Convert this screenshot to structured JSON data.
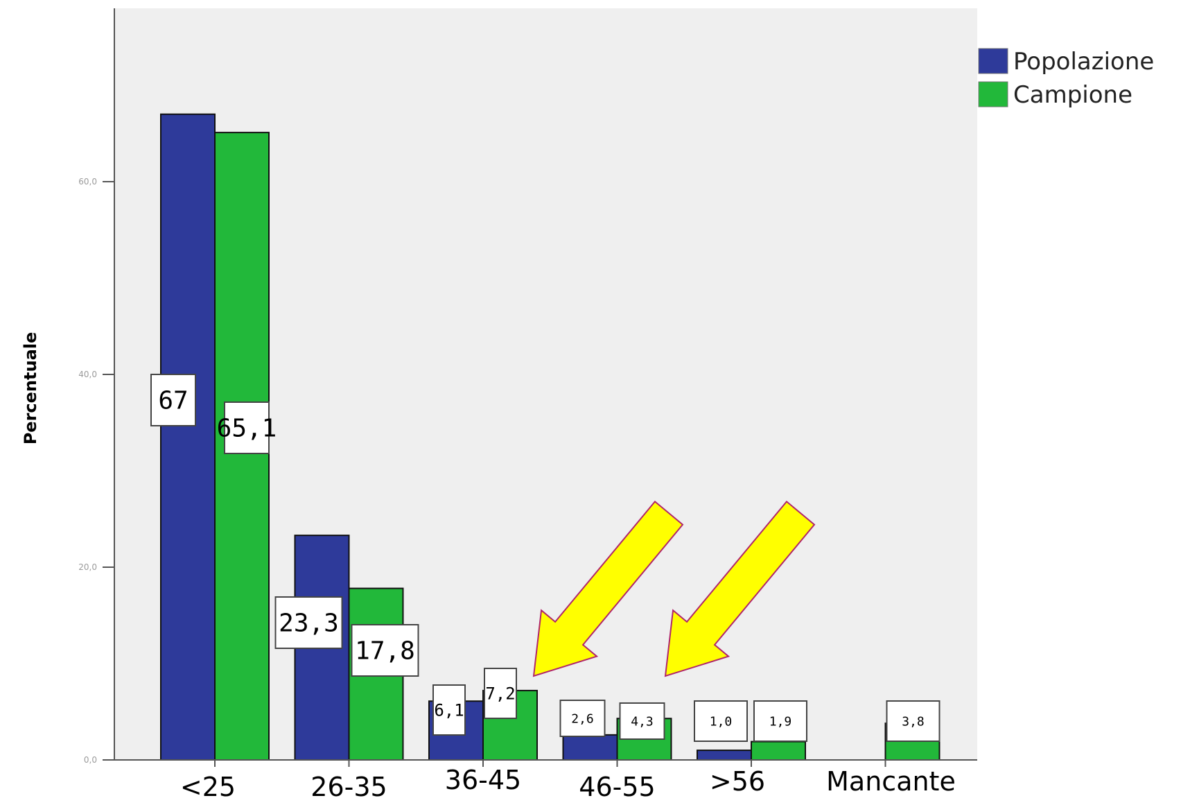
{
  "chart_data": {
    "type": "bar",
    "title": "",
    "xlabel": "",
    "ylabel": "Percentuale",
    "categories": [
      "<25",
      "26-35",
      "36-45",
      "46-55",
      ">56",
      "Mancante"
    ],
    "series": [
      {
        "name": "Popolazione",
        "color": "#2e3a9a",
        "values": [
          67,
          23.3,
          6.1,
          2.6,
          1.0,
          null
        ],
        "labels": [
          "67",
          "23,3",
          "6,1",
          "2,6",
          "1,0",
          ""
        ]
      },
      {
        "name": "Campione",
        "color": "#22b83a",
        "values": [
          65.1,
          17.8,
          7.2,
          4.3,
          1.9,
          3.8
        ],
        "labels": [
          "65,1",
          "17,8",
          "7,2",
          "4,3",
          "1,9",
          "3,8"
        ]
      }
    ],
    "ylim": [
      0,
      75
    ],
    "yticks": [
      "0,0",
      "20,0",
      "40,0",
      "60,0"
    ],
    "ytick_values": [
      0,
      20,
      40,
      60
    ],
    "grid": false,
    "legend": "top-right",
    "plot_background": "#efefef",
    "annotations": [
      {
        "type": "arrow",
        "color": "#ffff00",
        "target_category": "36-45"
      },
      {
        "type": "arrow",
        "color": "#ffff00",
        "target_category": "46-55"
      }
    ]
  }
}
